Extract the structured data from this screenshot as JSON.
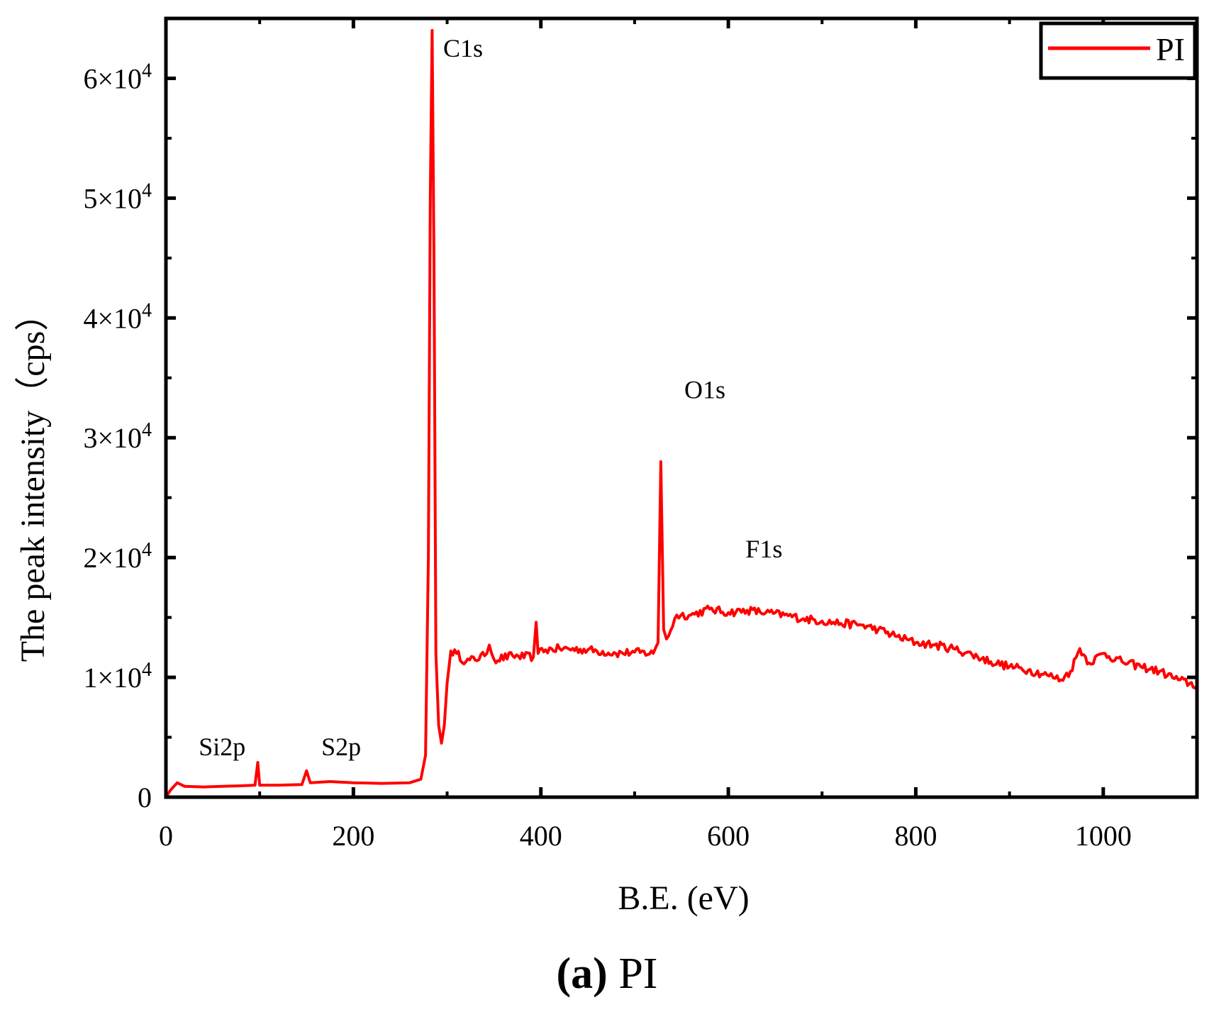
{
  "chart_data": {
    "type": "line",
    "xlabel": "B.E. (eV)",
    "ylabel": "The peak intensity（cps）",
    "xlim": [
      0,
      1100
    ],
    "ylim": [
      0,
      65000
    ],
    "x_ticks": [
      0,
      200,
      400,
      600,
      800,
      1000
    ],
    "x_tick_labels": [
      "0",
      "200",
      "400",
      "600",
      "800",
      "1000"
    ],
    "y_ticks": [
      0,
      10000,
      20000,
      30000,
      40000,
      50000,
      60000
    ],
    "y_tick_labels": [
      {
        "mantissa": "0",
        "power": ""
      },
      {
        "mantissa": "1×10",
        "power": "4"
      },
      {
        "mantissa": "2×10",
        "power": "4"
      },
      {
        "mantissa": "3×10",
        "power": "4"
      },
      {
        "mantissa": "4×10",
        "power": "4"
      },
      {
        "mantissa": "5×10",
        "power": "4"
      },
      {
        "mantissa": "6×10",
        "power": "4"
      }
    ],
    "legend": {
      "entries": [
        "PI"
      ],
      "placement": "top-right"
    },
    "series": [
      {
        "name": "PI",
        "color": "#ff0000",
        "points": [
          [
            0,
            0
          ],
          [
            5,
            600
          ],
          [
            12,
            1200
          ],
          [
            20,
            900
          ],
          [
            40,
            850
          ],
          [
            60,
            900
          ],
          [
            80,
            950
          ],
          [
            95,
            1000
          ],
          [
            98,
            2900
          ],
          [
            100,
            1000
          ],
          [
            120,
            1000
          ],
          [
            145,
            1050
          ],
          [
            150,
            2200
          ],
          [
            154,
            1200
          ],
          [
            175,
            1300
          ],
          [
            200,
            1200
          ],
          [
            230,
            1150
          ],
          [
            260,
            1200
          ],
          [
            272,
            1500
          ],
          [
            277,
            3500
          ],
          [
            280,
            20000
          ],
          [
            282,
            50000
          ],
          [
            284,
            64000
          ],
          [
            286,
            45000
          ],
          [
            288,
            12000
          ],
          [
            291,
            6000
          ],
          [
            294,
            4500
          ],
          [
            297,
            6000
          ],
          [
            300,
            9500
          ],
          [
            304,
            12200
          ],
          [
            310,
            12000
          ],
          [
            320,
            11300
          ],
          [
            340,
            11800
          ],
          [
            345,
            12700
          ],
          [
            350,
            11500
          ],
          [
            370,
            11800
          ],
          [
            392,
            11700
          ],
          [
            395,
            14600
          ],
          [
            397,
            12000
          ],
          [
            405,
            12300
          ],
          [
            420,
            12400
          ],
          [
            450,
            12300
          ],
          [
            480,
            12000
          ],
          [
            500,
            12100
          ],
          [
            520,
            12000
          ],
          [
            525,
            12900
          ],
          [
            528,
            28000
          ],
          [
            531,
            14000
          ],
          [
            534,
            13200
          ],
          [
            545,
            15200
          ],
          [
            560,
            15200
          ],
          [
            580,
            15700
          ],
          [
            600,
            15400
          ],
          [
            620,
            15600
          ],
          [
            640,
            15400
          ],
          [
            660,
            15200
          ],
          [
            680,
            14900
          ],
          [
            700,
            14700
          ],
          [
            720,
            14500
          ],
          [
            740,
            14400
          ],
          [
            760,
            14000
          ],
          [
            780,
            13400
          ],
          [
            800,
            12900
          ],
          [
            820,
            12700
          ],
          [
            840,
            12400
          ],
          [
            860,
            11900
          ],
          [
            880,
            11300
          ],
          [
            900,
            10900
          ],
          [
            920,
            10600
          ],
          [
            940,
            10200
          ],
          [
            955,
            9800
          ],
          [
            965,
            10500
          ],
          [
            975,
            12400
          ],
          [
            985,
            11200
          ],
          [
            1000,
            12000
          ],
          [
            1020,
            11300
          ],
          [
            1040,
            10900
          ],
          [
            1060,
            10500
          ],
          [
            1080,
            9800
          ],
          [
            1100,
            9300
          ]
        ]
      }
    ],
    "annotations": [
      {
        "text": "Si2p",
        "x": 60,
        "y": 3500
      },
      {
        "text": "S2p",
        "x": 187,
        "y": 3500
      },
      {
        "text": "C1s",
        "x": 317,
        "y": 61800
      },
      {
        "text": "O1s",
        "x": 575,
        "y": 33300
      },
      {
        "text": "F1s",
        "x": 638,
        "y": 20000
      }
    ]
  },
  "caption": {
    "label": "(a)",
    "text": " PI"
  }
}
